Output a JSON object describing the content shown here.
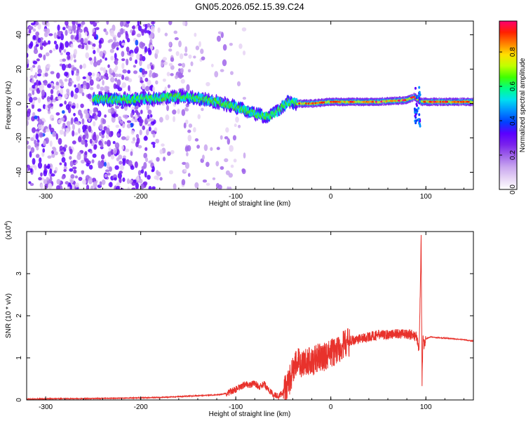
{
  "page_title": "GN05.2026.052.15.39.C24",
  "colors": {
    "trace": "#e8322c",
    "background": "#ffffff",
    "axis": "#000000",
    "colormap": [
      "#ffffff",
      "#e6d4f5",
      "#c9a6ef",
      "#a065ea",
      "#7a22ec",
      "#5a00ff",
      "#0040ff",
      "#0090ff",
      "#00e0f0",
      "#00ff88",
      "#40ff00",
      "#c0ff00",
      "#ffe000",
      "#ff8000",
      "#ff2000",
      "#ff0070"
    ]
  },
  "chart_data": [
    {
      "type": "heatmap",
      "title": "",
      "xlabel": "Height of straight line (km)",
      "ylabel": "Frequency (Hz)",
      "xlim": [
        -320,
        150
      ],
      "ylim": [
        -50,
        48
      ],
      "xticks": [
        -300,
        -200,
        -100,
        0,
        100
      ],
      "yticks": [
        -40,
        -20,
        0,
        20,
        40
      ],
      "grid": false,
      "colorbar": {
        "label": "Normalized spectral amplitude",
        "range": [
          0,
          0.98
        ],
        "ticks": [
          0.0,
          0.2,
          0.4,
          0.6,
          0.8
        ],
        "tick_labels": [
          "0.0",
          "0.2",
          "0.4",
          "0.6",
          "0.8"
        ]
      },
      "ridge": {
        "x": [
          -250,
          -220,
          -185,
          -160,
          -140,
          -120,
          -100,
          -80,
          -65,
          -55,
          -45,
          -35,
          -20,
          0,
          20,
          50,
          80,
          88,
          95,
          110,
          150
        ],
        "y": [
          3,
          2,
          3,
          4,
          3,
          1,
          -2,
          -6,
          -8,
          -4,
          1,
          0,
          0,
          1,
          1,
          1,
          2,
          4,
          1,
          1,
          1
        ]
      }
    },
    {
      "type": "line",
      "title": "",
      "xlabel": "Height of straight line (km)",
      "ylabel": "SNR (10 * v/v)",
      "y_scale_label": "(x10",
      "y_scale_exp": "4",
      "y_scale_close": ")",
      "xlim": [
        -320,
        150
      ],
      "ylim": [
        0,
        4.0
      ],
      "xticks": [
        -300,
        -200,
        -100,
        0,
        100
      ],
      "yticks": [
        0,
        1,
        2,
        3
      ],
      "grid": false,
      "series": [
        {
          "x": [
            -320,
            -290,
            -260,
            -230,
            -200,
            -180,
            -160,
            -150,
            -140,
            -120,
            -110,
            -100,
            -95,
            -90,
            -85,
            -80,
            -75,
            -70,
            -65,
            -60,
            -55,
            -50,
            -45,
            -40,
            -35,
            -30,
            -25,
            -20,
            -15,
            -10,
            -5,
            0,
            10,
            20,
            30,
            40,
            50,
            60,
            70,
            80,
            85,
            90,
            93,
            95,
            96,
            97,
            98,
            100,
            105,
            110,
            120,
            130,
            140,
            150
          ],
          "y": [
            0.02,
            0.03,
            0.03,
            0.04,
            0.05,
            0.06,
            0.08,
            0.09,
            0.1,
            0.12,
            0.15,
            0.25,
            0.3,
            0.38,
            0.35,
            0.4,
            0.3,
            0.38,
            0.22,
            0.12,
            0.08,
            0.2,
            0.35,
            0.7,
            0.9,
            0.85,
            0.95,
            0.9,
            1.0,
            1.0,
            1.05,
            1.1,
            1.25,
            1.4,
            1.45,
            1.5,
            1.55,
            1.55,
            1.58,
            1.55,
            1.55,
            1.5,
            1.2,
            3.8,
            0.4,
            1.6,
            1.3,
            1.45,
            1.5,
            1.48,
            1.47,
            1.45,
            1.43,
            1.4
          ]
        }
      ]
    }
  ]
}
